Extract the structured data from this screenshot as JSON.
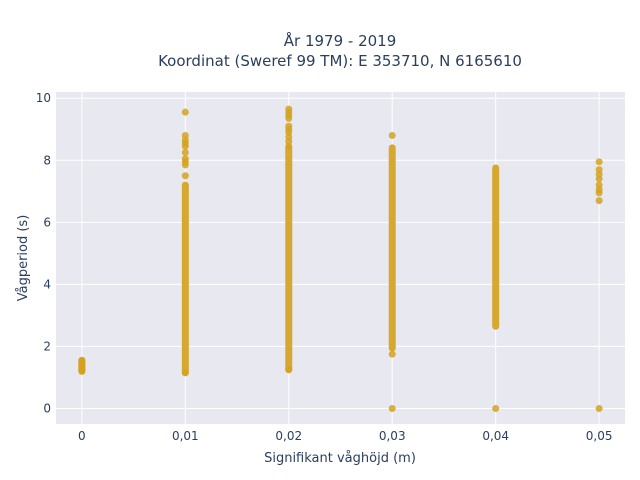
{
  "chart_data": {
    "type": "scatter",
    "title_lines": [
      "År 1979 - 2019",
      "Koordinat (Sweref 99 TM): E 353710, N 6165610"
    ],
    "xlabel": "Signifikant våghöjd (m)",
    "ylabel": "Vågperiod (s)",
    "x_ticks": [
      {
        "value": 0,
        "label": "0"
      },
      {
        "value": 0.01,
        "label": "0,01"
      },
      {
        "value": 0.02,
        "label": "0,02"
      },
      {
        "value": 0.03,
        "label": "0,03"
      },
      {
        "value": 0.04,
        "label": "0,04"
      },
      {
        "value": 0.05,
        "label": "0,05"
      }
    ],
    "y_ticks": [
      {
        "value": 0,
        "label": "0"
      },
      {
        "value": 2,
        "label": "2"
      },
      {
        "value": 4,
        "label": "4"
      },
      {
        "value": 6,
        "label": "6"
      },
      {
        "value": 8,
        "label": "8"
      },
      {
        "value": 10,
        "label": "10"
      }
    ],
    "xlim": [
      -0.0025,
      0.0525
    ],
    "ylim": [
      -0.5,
      10.2
    ],
    "grid": true,
    "marker_color": "#d4a21f",
    "plot_background": "#e8e8f1",
    "columns": [
      {
        "x": 0,
        "ranges": [
          [
            1.2,
            1.55
          ]
        ],
        "points": [
          1.2,
          1.25,
          1.3,
          1.35,
          1.4,
          1.45,
          1.5,
          1.55
        ]
      },
      {
        "x": 0.01,
        "ranges": [
          [
            1.15,
            7.2
          ]
        ],
        "points": [
          1.15,
          7.5,
          7.85,
          7.95,
          8.05,
          8.25,
          8.45,
          8.55,
          8.65,
          8.8,
          9.55
        ]
      },
      {
        "x": 0.02,
        "ranges": [
          [
            1.25,
            8.4
          ]
        ],
        "points": [
          1.25,
          8.45,
          8.6,
          8.75,
          8.9,
          9.0,
          9.1,
          9.35,
          9.45,
          9.55,
          9.65
        ]
      },
      {
        "x": 0.03,
        "ranges": [
          [
            1.95,
            8.4
          ]
        ],
        "points": [
          0,
          1.75,
          8.8
        ]
      },
      {
        "x": 0.04,
        "ranges": [
          [
            2.65,
            7.75
          ]
        ],
        "points": [
          0
        ]
      },
      {
        "x": 0.05,
        "ranges": [],
        "points": [
          0,
          6.7,
          6.95,
          7.05,
          7.2,
          7.4,
          7.55,
          7.7,
          7.95
        ]
      }
    ]
  }
}
